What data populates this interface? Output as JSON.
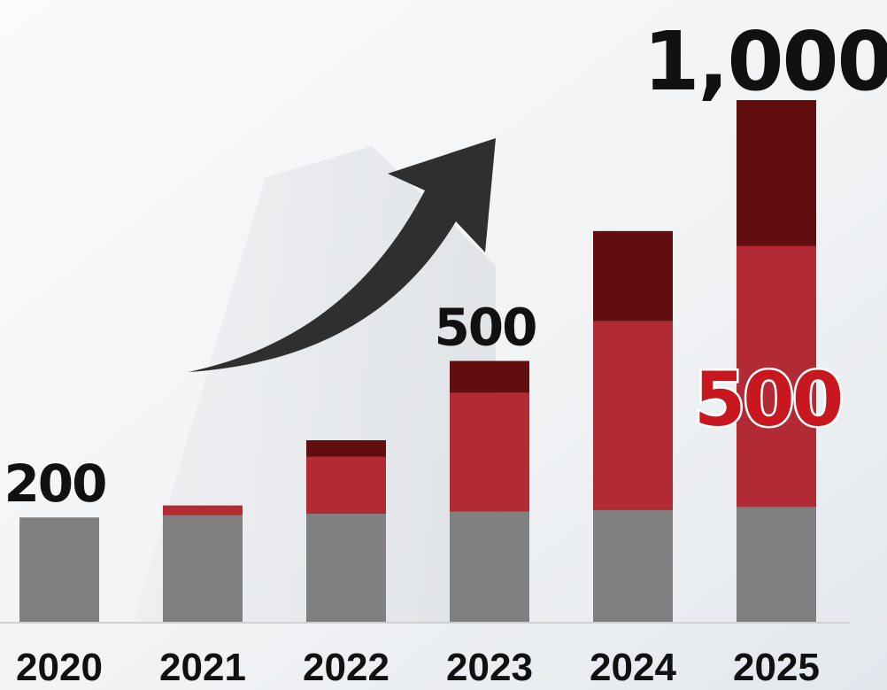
{
  "chart_data": {
    "type": "stacked_bar",
    "categories": [
      "2020",
      "2021",
      "2022",
      "2023",
      "2024",
      "2025"
    ],
    "series": [
      {
        "color": "#808080",
        "values": [
          200,
          204,
          207,
          211,
          214,
          220
        ]
      },
      {
        "color": "#b22a33",
        "values": [
          0,
          19,
          109,
          228,
          362,
          500
        ],
        "value_labels": [
          null,
          null,
          null,
          null,
          null,
          "500"
        ]
      },
      {
        "color": "#620e0e",
        "values": [
          0,
          0,
          32,
          61,
          173,
          280
        ]
      }
    ],
    "ylim": [
      0,
      1000
    ],
    "annotations": [
      {
        "category": "2020",
        "text": "200"
      },
      {
        "category": "2023",
        "text": "500"
      },
      {
        "category": "2025",
        "text": "1,000"
      }
    ]
  }
}
